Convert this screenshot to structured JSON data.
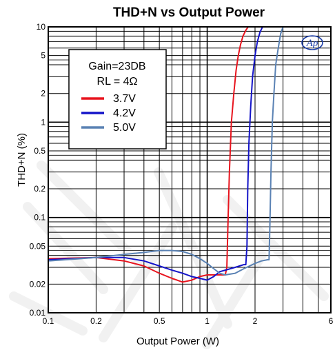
{
  "chart_data": {
    "type": "line",
    "title": "THD+N vs Output Power",
    "xlabel": "Output Power (W)",
    "ylabel": "THD+N (%)",
    "x_scale": "log",
    "y_scale": "log",
    "xlim": [
      0.1,
      6
    ],
    "ylim": [
      0.01,
      10
    ],
    "x_ticks": [
      0.1,
      0.2,
      0.5,
      1,
      2,
      6
    ],
    "x_tick_labels": [
      "0.1",
      "0.2",
      "0.5",
      "1",
      "2",
      "6"
    ],
    "y_ticks": [
      0.01,
      0.02,
      0.05,
      0.1,
      0.2,
      0.5,
      1,
      2,
      5,
      10
    ],
    "y_tick_labels": [
      "0.01",
      "0.02",
      "0.05",
      "0.1",
      "0.2",
      "0.5",
      "1",
      "2",
      "5",
      "10"
    ],
    "grid": true,
    "legend": {
      "placement": "top-left",
      "title_lines": [
        "Gain=23DB",
        "RL = 4Ω"
      ]
    },
    "logo_text": "Ap",
    "series": [
      {
        "name": "3.7V",
        "color": "#e8141e",
        "x": [
          0.1,
          0.2,
          0.3,
          0.4,
          0.5,
          0.6,
          0.7,
          0.8,
          0.9,
          1.0,
          1.1,
          1.2,
          1.3,
          1.33,
          1.35,
          1.38,
          1.42,
          1.47,
          1.52,
          1.57,
          1.62,
          1.68,
          1.75,
          1.81
        ],
        "y": [
          0.037,
          0.038,
          0.035,
          0.031,
          0.026,
          0.023,
          0.021,
          0.022,
          0.024,
          0.025,
          0.025,
          0.025,
          0.025,
          0.03,
          0.08,
          0.3,
          1.0,
          2.0,
          3.5,
          5.0,
          6.5,
          8.0,
          9.2,
          10
        ]
      },
      {
        "name": "4.2V",
        "color": "#1414c8",
        "x": [
          0.1,
          0.2,
          0.3,
          0.4,
          0.5,
          0.6,
          0.7,
          0.8,
          0.9,
          1.0,
          1.1,
          1.2,
          1.3,
          1.4,
          1.5,
          1.6,
          1.7,
          1.75,
          1.78,
          1.8,
          1.83,
          1.88,
          1.93,
          2.0,
          2.07,
          2.15,
          2.23
        ],
        "y": [
          0.036,
          0.038,
          0.038,
          0.035,
          0.031,
          0.028,
          0.026,
          0.024,
          0.023,
          0.022,
          0.024,
          0.027,
          0.028,
          0.029,
          0.03,
          0.031,
          0.032,
          0.032,
          0.05,
          0.2,
          0.6,
          1.5,
          3.0,
          5.0,
          7.0,
          8.8,
          10
        ]
      },
      {
        "name": "5.0V",
        "color": "#5a82b4",
        "x": [
          0.1,
          0.2,
          0.3,
          0.4,
          0.5,
          0.6,
          0.7,
          0.8,
          0.9,
          1.0,
          1.1,
          1.2,
          1.3,
          1.5,
          1.7,
          2.0,
          2.2,
          2.4,
          2.45,
          2.48,
          2.52,
          2.57,
          2.63,
          2.7,
          2.8,
          2.9,
          3.0
        ],
        "y": [
          0.035,
          0.038,
          0.041,
          0.043,
          0.045,
          0.045,
          0.044,
          0.041,
          0.037,
          0.033,
          0.029,
          0.026,
          0.025,
          0.026,
          0.029,
          0.033,
          0.035,
          0.036,
          0.036,
          0.08,
          0.3,
          1.0,
          2.0,
          4.0,
          6.0,
          8.5,
          10
        ]
      }
    ]
  }
}
